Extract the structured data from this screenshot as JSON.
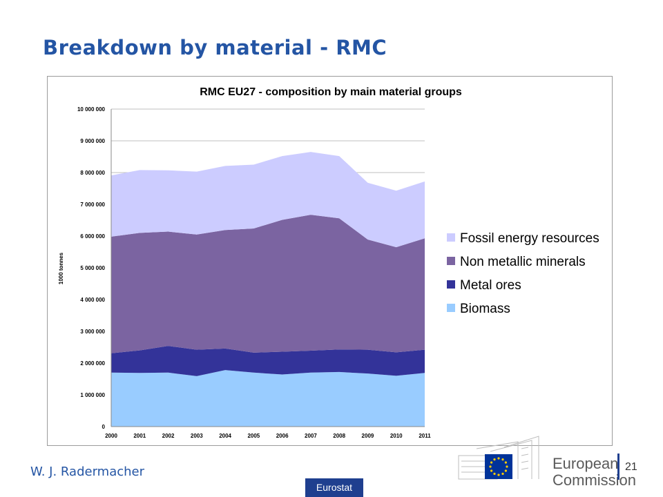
{
  "slide": {
    "title": "Breakdown by material - RMC",
    "author": "W. J. Radermacher",
    "source": "Eurostat",
    "page_number": "21",
    "logo": {
      "line1": "European",
      "line2": "Commission"
    }
  },
  "chart_data": {
    "type": "area",
    "stacked": true,
    "title": "RMC EU27 - composition by main material groups",
    "xlabel": "",
    "ylabel": "1000 tonnes",
    "x": [
      "2000",
      "2001",
      "2002",
      "2003",
      "2004",
      "2005",
      "2006",
      "2007",
      "2008",
      "2009",
      "2010",
      "2011"
    ],
    "ylim": [
      0,
      10000000
    ],
    "yticks": [
      0,
      1000000,
      2000000,
      3000000,
      4000000,
      5000000,
      6000000,
      7000000,
      8000000,
      9000000,
      10000000
    ],
    "ytick_labels": [
      "0",
      "1 000 000",
      "2 000 000",
      "3 000 000",
      "4 000 000",
      "5 000 000",
      "6 000 000",
      "7 000 000",
      "8 000 000",
      "9 000 000",
      "10 000 000"
    ],
    "grid": true,
    "legend": "right",
    "series": [
      {
        "name": "Biomass",
        "color": "#99ccff",
        "values": [
          1700000,
          1690000,
          1700000,
          1590000,
          1780000,
          1700000,
          1640000,
          1700000,
          1720000,
          1670000,
          1600000,
          1690000
        ]
      },
      {
        "name": "Metal ores",
        "color": "#333399",
        "values": [
          610000,
          710000,
          840000,
          830000,
          680000,
          630000,
          720000,
          690000,
          710000,
          750000,
          740000,
          730000
        ]
      },
      {
        "name": "Non metallic minerals",
        "color": "#7b64a1",
        "values": [
          3670000,
          3700000,
          3600000,
          3630000,
          3730000,
          3910000,
          4150000,
          4280000,
          4130000,
          3470000,
          3310000,
          3510000
        ]
      },
      {
        "name": "Fossil energy resources",
        "color": "#ccccff",
        "values": [
          1930000,
          1980000,
          1930000,
          1980000,
          2020000,
          2010000,
          2010000,
          1980000,
          1960000,
          1790000,
          1780000,
          1790000
        ]
      }
    ]
  }
}
